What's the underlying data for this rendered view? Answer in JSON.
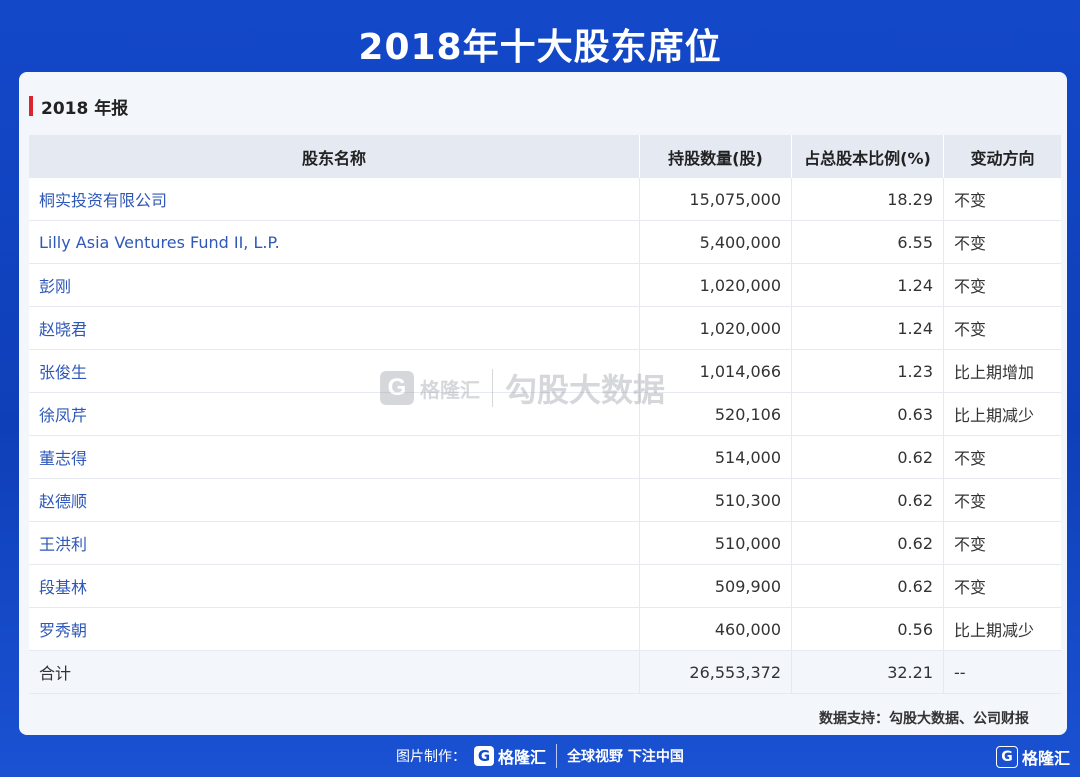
{
  "title": "2018年十大股东席位",
  "section_title": "2018 年报",
  "table": {
    "headers": [
      "股东名称",
      "持股数量(股)",
      "占总股本比例(%)",
      "变动方向"
    ],
    "rows": [
      {
        "name": "桐实投资有限公司",
        "qty": "15,075,000",
        "pct": "18.29",
        "change": "不变"
      },
      {
        "name": "Lilly Asia Ventures Fund II, L.P.",
        "qty": "5,400,000",
        "pct": "6.55",
        "change": "不变"
      },
      {
        "name": "彭刚",
        "qty": "1,020,000",
        "pct": "1.24",
        "change": "不变"
      },
      {
        "name": "赵晓君",
        "qty": "1,020,000",
        "pct": "1.24",
        "change": "不变"
      },
      {
        "name": "张俊生",
        "qty": "1,014,066",
        "pct": "1.23",
        "change": "比上期增加"
      },
      {
        "name": "徐凤芹",
        "qty": "520,106",
        "pct": "0.63",
        "change": "比上期减少"
      },
      {
        "name": "董志得",
        "qty": "514,000",
        "pct": "0.62",
        "change": "不变"
      },
      {
        "name": "赵德顺",
        "qty": "510,300",
        "pct": "0.62",
        "change": "不变"
      },
      {
        "name": "王洪利",
        "qty": "510,000",
        "pct": "0.62",
        "change": "不变"
      },
      {
        "name": "段基林",
        "qty": "509,900",
        "pct": "0.62",
        "change": "不变"
      },
      {
        "name": "罗秀朝",
        "qty": "460,000",
        "pct": "0.56",
        "change": "比上期减少"
      }
    ],
    "total": {
      "name": "合计",
      "qty": "26,553,372",
      "pct": "32.21",
      "change": "--"
    }
  },
  "source": "数据支持：勾股大数据、公司财报",
  "watermark": {
    "logo_letter": "G",
    "brand": "格隆汇",
    "text": "勾股大数据"
  },
  "footer": {
    "prefix": "图片制作：",
    "logo_letter": "G",
    "brand": "格隆汇",
    "slogan": "全球视野 下注中国"
  },
  "corner": {
    "logo_letter": "G",
    "brand": "格隆汇"
  },
  "colors": {
    "background": "#1348c9",
    "accent_bar": "#d8262c",
    "link": "#2f58b8"
  }
}
